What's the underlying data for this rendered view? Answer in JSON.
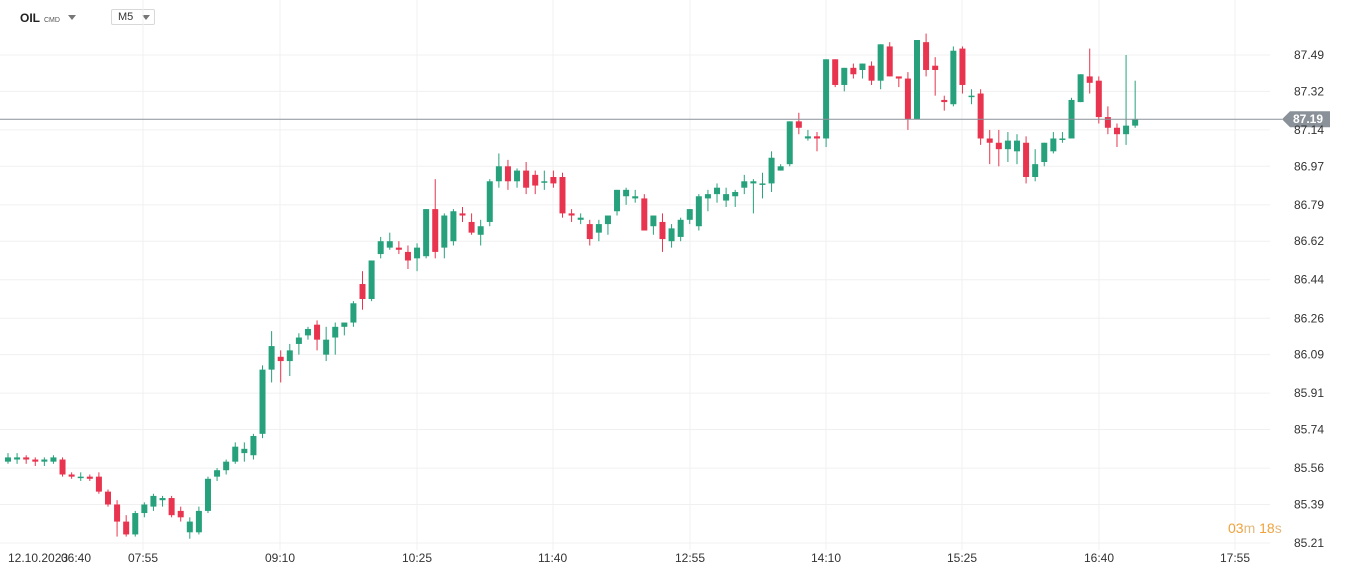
{
  "header": {
    "symbol": "OIL",
    "symbol_suffix": "CMD",
    "timeframe": "M5"
  },
  "timer": {
    "minutes": "03",
    "m": "m",
    "seconds": "18",
    "s": "s"
  },
  "colors": {
    "up": "#26a17b",
    "down": "#e8344e",
    "price_line": "#8a9199",
    "grid": "#f0f0f0",
    "price_label": "#8a9199"
  },
  "chart_data": {
    "type": "candlestick",
    "title": "",
    "xlabel": "",
    "ylabel": "",
    "ylim": [
      85.21,
      87.66
    ],
    "current_price": 87.19,
    "current_price_label": "87.19",
    "y_ticks": [
      "87.49",
      "87.32",
      "87.14",
      "86.97",
      "86.79",
      "86.62",
      "86.44",
      "86.26",
      "86.09",
      "85.91",
      "85.74",
      "85.56",
      "85.39",
      "85.21"
    ],
    "x_ticks": [
      "12.10.2023",
      "06:40",
      "07:55",
      "09:10",
      "10:25",
      "11:40",
      "12:55",
      "14:10",
      "15:25",
      "16:40",
      "17:55"
    ],
    "grid": true,
    "candles": [
      [
        85.59,
        85.63,
        85.58,
        85.61
      ],
      [
        85.6,
        85.63,
        85.58,
        85.61
      ],
      [
        85.61,
        85.62,
        85.58,
        85.6
      ],
      [
        85.6,
        85.61,
        85.57,
        85.59
      ],
      [
        85.59,
        85.61,
        85.57,
        85.6
      ],
      [
        85.59,
        85.62,
        85.58,
        85.61
      ],
      [
        85.6,
        85.61,
        85.52,
        85.53
      ],
      [
        85.53,
        85.54,
        85.51,
        85.52
      ],
      [
        85.52,
        85.54,
        85.5,
        85.52
      ],
      [
        85.52,
        85.53,
        85.5,
        85.51
      ],
      [
        85.52,
        85.54,
        85.44,
        85.45
      ],
      [
        85.45,
        85.46,
        85.38,
        85.39
      ],
      [
        85.39,
        85.41,
        85.24,
        85.31
      ],
      [
        85.31,
        85.34,
        85.24,
        85.25
      ],
      [
        85.25,
        85.36,
        85.24,
        85.35
      ],
      [
        85.35,
        85.4,
        85.33,
        85.39
      ],
      [
        85.38,
        85.44,
        85.36,
        85.43
      ],
      [
        85.41,
        85.43,
        85.38,
        85.42
      ],
      [
        85.42,
        85.43,
        85.33,
        85.34
      ],
      [
        85.36,
        85.38,
        85.31,
        85.33
      ],
      [
        85.26,
        85.33,
        85.23,
        85.31
      ],
      [
        85.26,
        85.38,
        85.25,
        85.36
      ],
      [
        85.36,
        85.52,
        85.35,
        85.51
      ],
      [
        85.52,
        85.56,
        85.5,
        85.55
      ],
      [
        85.55,
        85.6,
        85.53,
        85.59
      ],
      [
        85.59,
        85.68,
        85.58,
        85.66
      ],
      [
        85.63,
        85.68,
        85.59,
        85.65
      ],
      [
        85.62,
        85.72,
        85.6,
        85.71
      ],
      [
        85.72,
        86.04,
        85.7,
        86.02
      ],
      [
        86.02,
        86.2,
        85.96,
        86.13
      ],
      [
        86.08,
        86.11,
        85.96,
        86.06
      ],
      [
        86.06,
        86.14,
        85.99,
        86.11
      ],
      [
        86.14,
        86.19,
        86.09,
        86.17
      ],
      [
        86.18,
        86.22,
        86.16,
        86.21
      ],
      [
        86.23,
        86.25,
        86.11,
        86.16
      ],
      [
        86.09,
        86.22,
        86.06,
        86.16
      ],
      [
        86.17,
        86.24,
        86.09,
        86.22
      ],
      [
        86.22,
        86.24,
        86.18,
        86.24
      ],
      [
        86.24,
        86.34,
        86.22,
        86.33
      ],
      [
        86.42,
        86.48,
        86.3,
        86.35
      ],
      [
        86.35,
        86.53,
        86.34,
        86.53
      ],
      [
        86.56,
        86.64,
        86.54,
        86.62
      ],
      [
        86.59,
        86.66,
        86.58,
        86.62
      ],
      [
        86.59,
        86.62,
        86.56,
        86.58
      ],
      [
        86.57,
        86.6,
        86.49,
        86.53
      ],
      [
        86.54,
        86.61,
        86.48,
        86.59
      ],
      [
        86.55,
        86.77,
        86.54,
        86.77
      ],
      [
        86.77,
        86.91,
        86.54,
        86.57
      ],
      [
        86.59,
        86.75,
        86.54,
        86.74
      ],
      [
        86.62,
        86.77,
        86.6,
        86.76
      ],
      [
        86.75,
        86.78,
        86.71,
        86.74
      ],
      [
        86.71,
        86.75,
        86.65,
        86.66
      ],
      [
        86.65,
        86.72,
        86.6,
        86.69
      ],
      [
        86.71,
        86.91,
        86.69,
        86.9
      ],
      [
        86.9,
        87.03,
        86.87,
        86.97
      ],
      [
        86.97,
        87.0,
        86.86,
        86.9
      ],
      [
        86.9,
        86.96,
        86.87,
        86.95
      ],
      [
        86.95,
        86.99,
        86.84,
        86.87
      ],
      [
        86.93,
        86.95,
        86.84,
        86.88
      ],
      [
        86.9,
        86.95,
        86.86,
        86.9
      ],
      [
        86.92,
        86.95,
        86.87,
        86.89
      ],
      [
        86.92,
        86.94,
        86.73,
        86.75
      ],
      [
        86.75,
        86.77,
        86.71,
        86.74
      ],
      [
        86.72,
        86.75,
        86.7,
        86.73
      ],
      [
        86.7,
        86.72,
        86.6,
        86.63
      ],
      [
        86.66,
        86.72,
        86.62,
        86.7
      ],
      [
        86.7,
        86.74,
        86.65,
        86.74
      ],
      [
        86.76,
        86.86,
        86.74,
        86.86
      ],
      [
        86.83,
        86.87,
        86.79,
        86.86
      ],
      [
        86.82,
        86.86,
        86.8,
        86.83
      ],
      [
        86.82,
        86.84,
        86.67,
        86.67
      ],
      [
        86.69,
        86.74,
        86.65,
        86.74
      ],
      [
        86.71,
        86.75,
        86.57,
        86.63
      ],
      [
        86.62,
        86.7,
        86.59,
        86.68
      ],
      [
        86.64,
        86.73,
        86.62,
        86.72
      ],
      [
        86.72,
        86.77,
        86.7,
        86.77
      ],
      [
        86.69,
        86.84,
        86.67,
        86.83
      ],
      [
        86.82,
        86.86,
        86.76,
        86.84
      ],
      [
        86.84,
        86.89,
        86.8,
        86.87
      ],
      [
        86.81,
        86.87,
        86.78,
        86.84
      ],
      [
        86.83,
        86.86,
        86.78,
        86.85
      ],
      [
        86.87,
        86.93,
        86.84,
        86.9
      ],
      [
        86.89,
        86.91,
        86.75,
        86.9
      ],
      [
        86.89,
        86.94,
        86.82,
        86.89
      ],
      [
        86.89,
        87.04,
        86.85,
        87.01
      ],
      [
        86.95,
        86.98,
        86.95,
        86.97
      ],
      [
        86.98,
        87.18,
        86.97,
        87.18
      ],
      [
        87.18,
        87.22,
        87.12,
        87.15
      ],
      [
        87.1,
        87.14,
        87.09,
        87.11
      ],
      [
        87.11,
        87.13,
        87.04,
        87.1
      ],
      [
        87.1,
        87.47,
        87.06,
        87.47
      ],
      [
        87.47,
        87.47,
        87.34,
        87.35
      ],
      [
        87.35,
        87.43,
        87.32,
        87.43
      ],
      [
        87.43,
        87.45,
        87.38,
        87.4
      ],
      [
        87.42,
        87.45,
        87.38,
        87.45
      ],
      [
        87.44,
        87.46,
        87.35,
        87.37
      ],
      [
        87.37,
        87.54,
        87.33,
        87.54
      ],
      [
        87.53,
        87.55,
        87.39,
        87.39
      ],
      [
        87.39,
        87.38,
        87.34,
        87.38
      ],
      [
        87.38,
        87.41,
        87.14,
        87.19
      ],
      [
        87.19,
        87.56,
        87.19,
        87.56
      ],
      [
        87.55,
        87.59,
        87.39,
        87.42
      ],
      [
        87.44,
        87.48,
        87.3,
        87.42
      ],
      [
        87.28,
        87.3,
        87.23,
        87.27
      ],
      [
        87.26,
        87.53,
        87.25,
        87.51
      ],
      [
        87.52,
        87.53,
        87.31,
        87.35
      ],
      [
        87.3,
        87.33,
        87.26,
        87.3
      ],
      [
        87.31,
        87.33,
        87.07,
        87.1
      ],
      [
        87.1,
        87.14,
        86.98,
        87.08
      ],
      [
        87.08,
        87.14,
        86.97,
        87.05
      ],
      [
        87.05,
        87.13,
        86.99,
        87.09
      ],
      [
        87.04,
        87.12,
        86.98,
        87.09
      ],
      [
        87.08,
        87.11,
        86.89,
        86.92
      ],
      [
        86.92,
        87.05,
        86.9,
        86.98
      ],
      [
        86.99,
        87.08,
        86.97,
        87.08
      ],
      [
        87.04,
        87.13,
        87.03,
        87.1
      ],
      [
        87.1,
        87.13,
        87.08,
        87.1
      ],
      [
        87.1,
        87.29,
        87.1,
        87.28
      ],
      [
        87.27,
        87.4,
        87.27,
        87.4
      ],
      [
        87.39,
        87.52,
        87.31,
        87.36
      ],
      [
        87.37,
        87.39,
        87.17,
        87.2
      ],
      [
        87.2,
        87.25,
        87.12,
        87.15
      ],
      [
        87.15,
        87.17,
        87.06,
        87.12
      ],
      [
        87.12,
        87.49,
        87.07,
        87.16
      ],
      [
        87.16,
        87.37,
        87.15,
        87.19
      ]
    ]
  }
}
